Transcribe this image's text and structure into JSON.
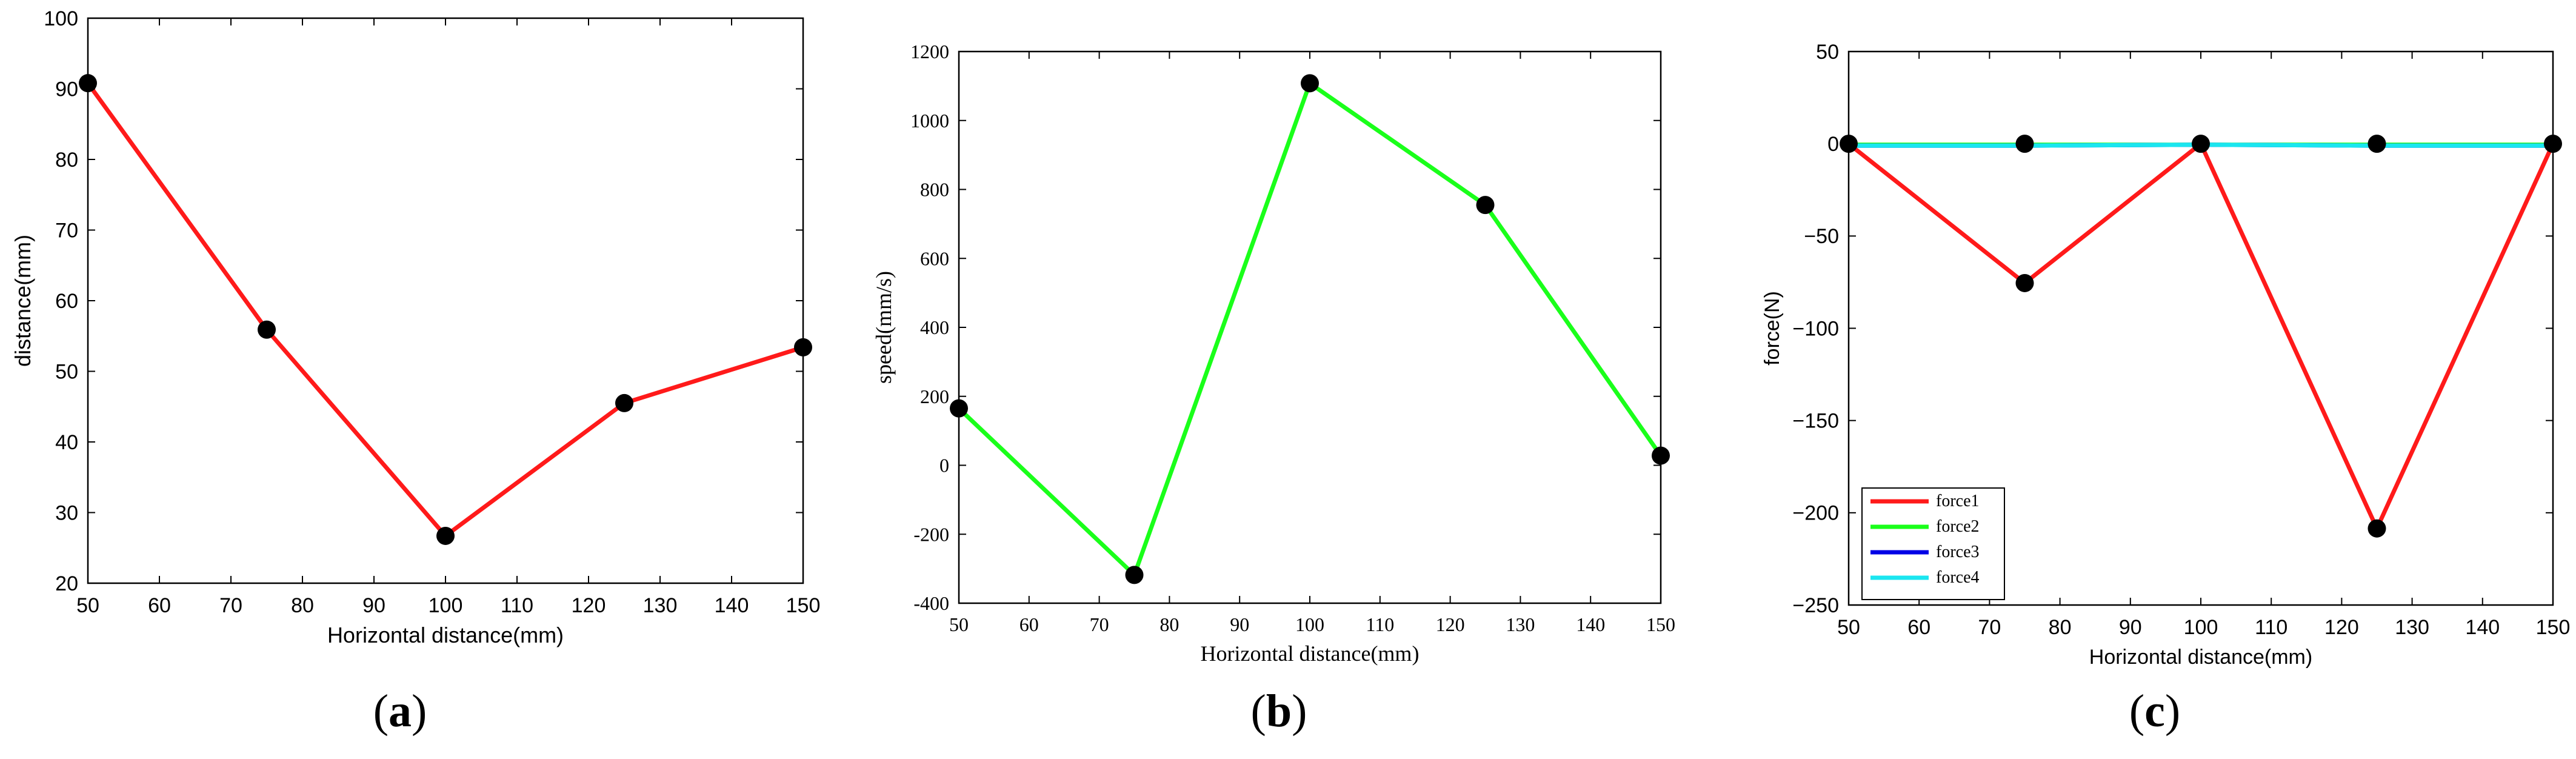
{
  "captions": [
    {
      "open": "(",
      "letter": "a",
      "close": ")"
    },
    {
      "open": "(",
      "letter": "b",
      "close": ")"
    },
    {
      "open": "(",
      "letter": "c",
      "close": ")"
    }
  ],
  "colors": {
    "line_red": "#ff1a1a",
    "line_green": "#1aff1a",
    "line_blue": "#0000e6",
    "line_cyan": "#1ae6f0",
    "marker": "#000000",
    "axis": "#000000"
  },
  "chart_data": [
    {
      "type": "line",
      "title": "",
      "xlabel": "Horizontal distance(mm)",
      "ylabel": "distance(mm)",
      "xlim": [
        50,
        150
      ],
      "ylim": [
        20,
        100
      ],
      "xticks": [
        50,
        60,
        70,
        80,
        90,
        100,
        110,
        120,
        130,
        140,
        150
      ],
      "yticks": [
        20,
        30,
        40,
        50,
        60,
        70,
        80,
        90,
        100
      ],
      "grid": false,
      "series": [
        {
          "color": "#ff1a1a",
          "x": [
            50,
            75,
            100,
            125,
            150
          ],
          "y": [
            90.8,
            55.9,
            26.7,
            45.5,
            53.4
          ]
        }
      ]
    },
    {
      "type": "line",
      "title": "",
      "xlabel": "Horizontal distance(mm)",
      "ylabel": "speed(mm/s)",
      "xlim": [
        50,
        150
      ],
      "ylim": [
        -400,
        1200
      ],
      "xticks": [
        50,
        60,
        70,
        80,
        90,
        100,
        110,
        120,
        130,
        140,
        150
      ],
      "yticks": [
        -400,
        -200,
        0,
        200,
        400,
        600,
        800,
        1000,
        1200
      ],
      "grid": false,
      "series": [
        {
          "color": "#1aff1a",
          "x": [
            50,
            75,
            100,
            125,
            150
          ],
          "y": [
            165,
            -318,
            1108,
            755,
            28
          ]
        }
      ]
    },
    {
      "type": "line",
      "title": "",
      "xlabel": "Horizontal distance(mm)",
      "ylabel": "force(N)",
      "xlim": [
        50,
        150
      ],
      "ylim": [
        -250,
        50
      ],
      "xticks": [
        50,
        60,
        70,
        80,
        90,
        100,
        110,
        120,
        130,
        140,
        150
      ],
      "yticks": [
        -250,
        -200,
        -150,
        -100,
        -50,
        0,
        50
      ],
      "grid": false,
      "legend_position": "bottom-left",
      "series": [
        {
          "name": "force1",
          "color": "#ff1a1a",
          "x": [
            50,
            75,
            100,
            125,
            150
          ],
          "y": [
            0,
            -75.5,
            0,
            -208.5,
            0
          ]
        },
        {
          "name": "force2",
          "color": "#1aff1a",
          "x": [
            50,
            75,
            100,
            125,
            150
          ],
          "y": [
            -0.5,
            -0.5,
            -0.5,
            -0.5,
            -0.5
          ]
        },
        {
          "name": "force3",
          "color": "#0000e6",
          "x": [
            50,
            75,
            100,
            125,
            150
          ],
          "y": [
            -1,
            -1,
            -0.5,
            -1,
            -1
          ]
        },
        {
          "name": "force4",
          "color": "#1ae6f0",
          "x": [
            50,
            75,
            100,
            125,
            150
          ],
          "y": [
            -1,
            -1,
            -0.5,
            -1,
            -1
          ]
        }
      ]
    }
  ]
}
